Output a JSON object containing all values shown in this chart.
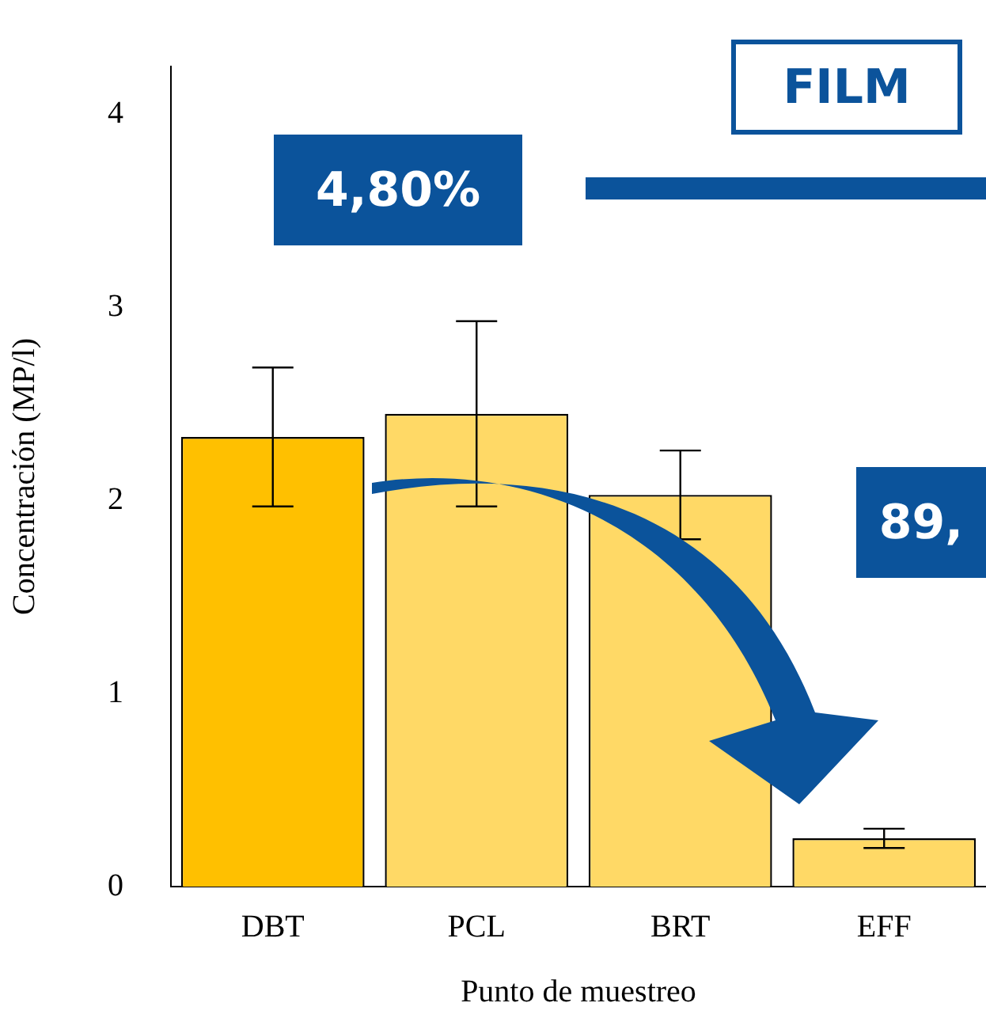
{
  "chart_data": {
    "type": "bar",
    "xlabel": "Punto de muestreo",
    "ylabel": "Concentración (MP/l)",
    "categories": [
      "DBT",
      "PCL",
      "BRT",
      "EFF"
    ],
    "values": [
      2.33,
      2.45,
      2.03,
      0.25
    ],
    "errors": [
      0.36,
      0.48,
      0.23,
      0.05
    ],
    "colors": [
      "#ffc000",
      "#ffd966",
      "#ffd966",
      "#ffd966"
    ],
    "ylim": [
      0,
      4.25
    ],
    "yticks": [
      0,
      1,
      2,
      3,
      4
    ],
    "grid": false,
    "legend": false,
    "annotations": [
      "FILM",
      "4,80%",
      "89,"
    ]
  }
}
